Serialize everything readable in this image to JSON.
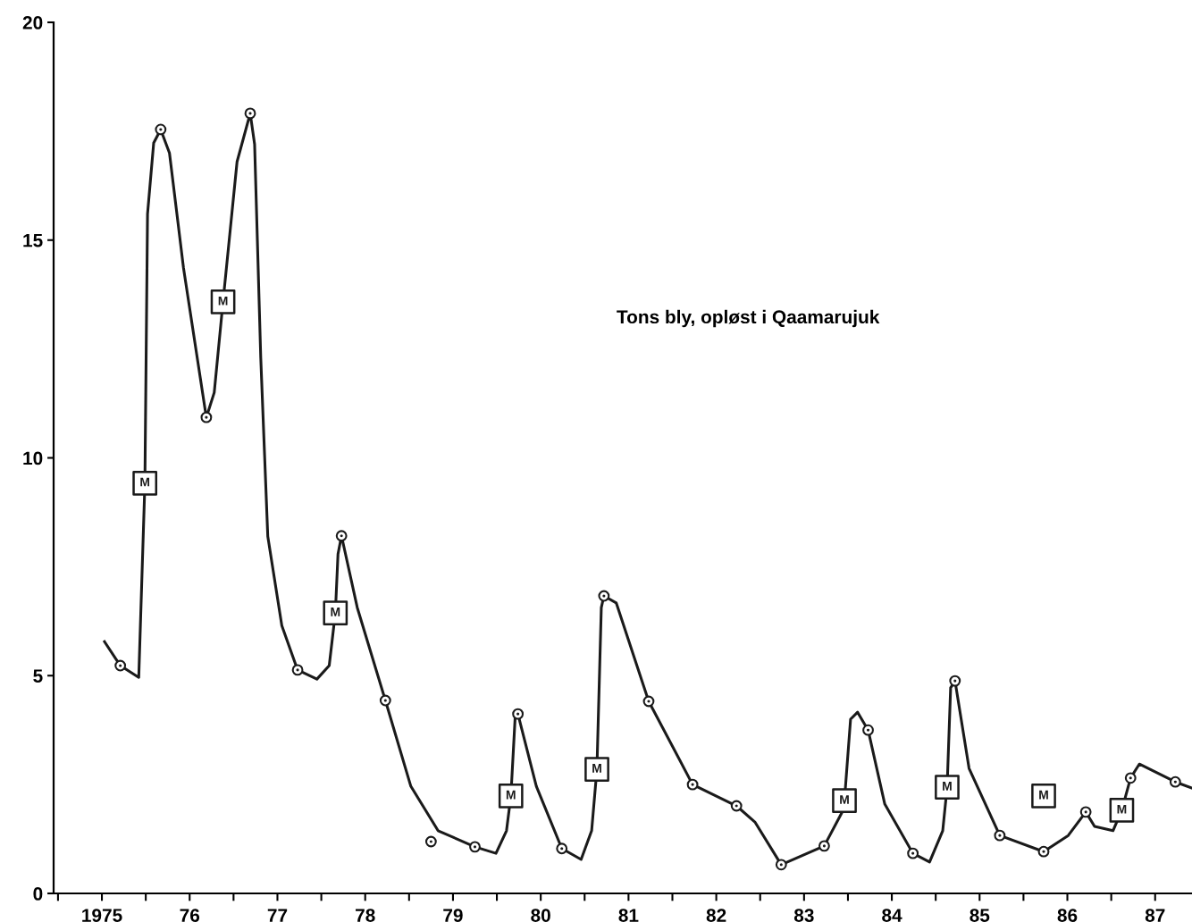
{
  "chart_data": {
    "type": "line",
    "title": "Tons bly, opløst i Qaamarujuk",
    "xlim": [
      1974.45,
      1987.42
    ],
    "ylim": [
      0,
      20
    ],
    "yticks": [
      0,
      5,
      10,
      15,
      20
    ],
    "xticks": [
      {
        "value": 1974.5,
        "label": null
      },
      {
        "value": 1975.5,
        "label": null
      },
      {
        "value": 1976.5,
        "label": null
      },
      {
        "value": 1977.5,
        "label": null
      },
      {
        "value": 1978.5,
        "label": null
      },
      {
        "value": 1979.5,
        "label": null
      },
      {
        "value": 1980.5,
        "label": null
      },
      {
        "value": 1981.5,
        "label": null
      },
      {
        "value": 1982.5,
        "label": null
      },
      {
        "value": 1983.5,
        "label": null
      },
      {
        "value": 1984.5,
        "label": null
      },
      {
        "value": 1985.5,
        "label": null
      },
      {
        "value": 1986.5,
        "label": null
      },
      1975,
      {
        "value": 1976,
        "label": "76"
      },
      {
        "value": 1977,
        "label": "77"
      },
      {
        "value": 1978,
        "label": "78"
      },
      {
        "value": 1979,
        "label": "79"
      },
      {
        "value": 1980,
        "label": "80"
      },
      {
        "value": 1981,
        "label": "81"
      },
      {
        "value": 1982,
        "label": "82"
      },
      {
        "value": 1983,
        "label": "83"
      },
      {
        "value": 1984,
        "label": "84"
      },
      {
        "value": 1985,
        "label": "85"
      },
      {
        "value": 1986,
        "label": "86"
      },
      {
        "value": 1987,
        "label": "87"
      }
    ],
    "grid": false,
    "legend": false,
    "series": [
      {
        "color": "#1a1a1a",
        "marker": "none",
        "line_style": "solid",
        "x": [
          1975.03,
          1975.21,
          1975.42,
          1975.49,
          1975.52,
          1975.59,
          1975.67,
          1975.77,
          1975.93,
          1976.19,
          1976.28,
          1976.38,
          1976.54,
          1976.69,
          1976.74,
          1976.81,
          1976.89,
          1977.05,
          1977.23,
          1977.45,
          1977.59,
          1977.66,
          1977.69,
          1977.73,
          1977.91,
          1978.23,
          1978.52,
          1978.83,
          1979.25,
          1979.49,
          1979.61,
          1979.66,
          1979.71,
          1979.74,
          1979.95,
          1980.24,
          1980.46,
          1980.58,
          1980.64,
          1980.69,
          1980.72,
          1980.86,
          1981.23,
          1981.73,
          1982.23,
          1982.44,
          1982.74,
          1983.23,
          1983.43,
          1983.46,
          1983.53,
          1983.61,
          1983.73,
          1983.92,
          1984.24,
          1984.43,
          1984.58,
          1984.63,
          1984.67,
          1984.72,
          1984.88,
          1985.23,
          1985.73,
          1986.01,
          1986.21,
          1986.31,
          1986.52,
          1986.62,
          1986.72,
          1986.82,
          1987.23,
          1987.42
        ],
        "values": [
          5.78,
          5.23,
          4.96,
          9.42,
          15.6,
          17.23,
          17.54,
          17.0,
          14.36,
          10.93,
          11.5,
          13.58,
          16.8,
          17.91,
          17.2,
          12.3,
          8.2,
          6.15,
          5.13,
          4.92,
          5.23,
          6.44,
          7.79,
          8.21,
          6.56,
          4.43,
          2.46,
          1.44,
          1.07,
          0.92,
          1.44,
          2.24,
          4.1,
          4.12,
          2.46,
          1.03,
          0.78,
          1.44,
          2.85,
          6.56,
          6.83,
          6.67,
          4.41,
          2.5,
          2.01,
          1.64,
          0.66,
          1.09,
          1.85,
          2.13,
          4.0,
          4.16,
          3.75,
          2.05,
          0.92,
          0.72,
          1.44,
          2.44,
          4.72,
          4.88,
          2.87,
          1.33,
          0.96,
          1.33,
          1.87,
          1.54,
          1.44,
          1.91,
          2.65,
          2.97,
          2.56,
          2.42
        ]
      },
      {
        "type": "scatter",
        "color": "#1a1a1a",
        "marker": "circle",
        "x": [
          1975.21,
          1975.67,
          1976.19,
          1976.69,
          1977.23,
          1977.73,
          1978.23,
          1978.75,
          1979.25,
          1979.74,
          1980.24,
          1980.72,
          1981.23,
          1981.73,
          1982.23,
          1982.74,
          1983.23,
          1983.73,
          1984.24,
          1984.72,
          1985.23,
          1985.73,
          1986.21,
          1986.72,
          1987.23
        ],
        "values": [
          5.23,
          17.54,
          10.93,
          17.91,
          5.13,
          8.21,
          4.43,
          1.19,
          1.07,
          4.12,
          1.03,
          6.83,
          4.41,
          2.5,
          2.01,
          0.66,
          1.09,
          3.75,
          0.92,
          4.88,
          1.33,
          0.96,
          1.87,
          2.65,
          2.56
        ]
      },
      {
        "type": "scatter",
        "name": "M",
        "color": "#1a1a1a",
        "marker": "square",
        "x": [
          1975.49,
          1976.38,
          1977.66,
          1979.66,
          1980.64,
          1983.46,
          1984.63,
          1985.73,
          1986.62
        ],
        "values": [
          9.42,
          13.58,
          6.44,
          2.24,
          2.85,
          2.13,
          2.44,
          2.24,
          1.91
        ]
      }
    ]
  }
}
